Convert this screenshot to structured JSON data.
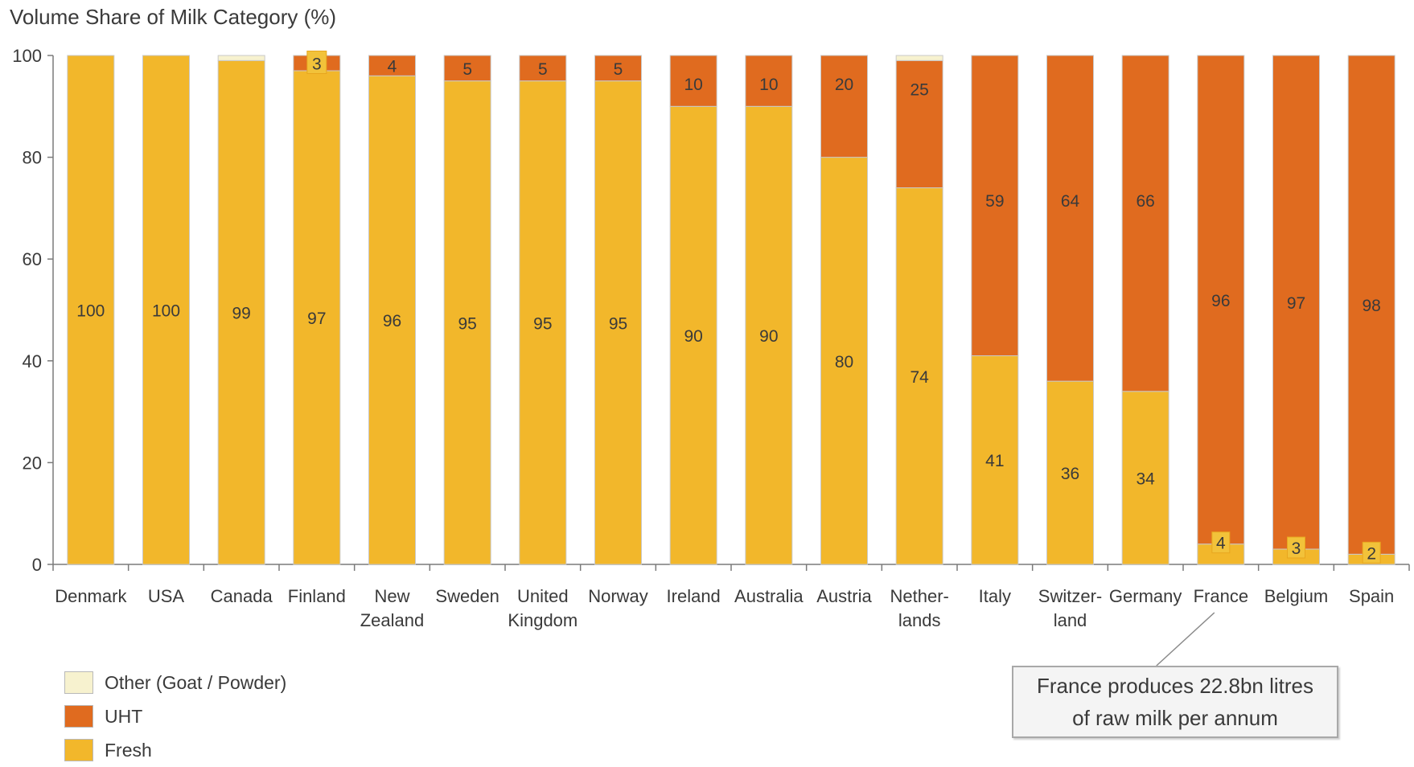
{
  "chart_data": {
    "type": "bar",
    "stacked": true,
    "title": "",
    "ylabel": "Volume Share of Milk Category (%)",
    "xlabel": "",
    "ylim": [
      0,
      100
    ],
    "yticks": [
      "0",
      "20",
      "40",
      "60",
      "80",
      "100"
    ],
    "grid": false,
    "legend_position": "bottom-left",
    "categories": [
      [
        "Denmark"
      ],
      [
        "USA"
      ],
      [
        "Canada"
      ],
      [
        "Finland"
      ],
      [
        "New",
        "Zealand"
      ],
      [
        "Sweden"
      ],
      [
        "United",
        "Kingdom"
      ],
      [
        "Norway"
      ],
      [
        "Ireland"
      ],
      [
        "Australia"
      ],
      [
        "Austria"
      ],
      [
        "Nether-",
        "lands"
      ],
      [
        "Italy"
      ],
      [
        "Switzer-",
        "land"
      ],
      [
        "Germany"
      ],
      [
        "France"
      ],
      [
        "Belgium"
      ],
      [
        "Spain"
      ]
    ],
    "series": [
      {
        "name": "Fresh",
        "color": "#f2b72b",
        "values": [
          100,
          100,
          99,
          97,
          96,
          95,
          95,
          95,
          90,
          90,
          80,
          74,
          41,
          36,
          34,
          4,
          3,
          2
        ],
        "labels": [
          "100",
          "100",
          "99",
          "97",
          "96",
          "95",
          "95",
          "95",
          "90",
          "90",
          "80",
          "74",
          "41",
          "36",
          "34",
          "4",
          "3",
          "2"
        ]
      },
      {
        "name": "UHT",
        "color": "#e06b1f",
        "values": [
          0,
          0,
          0,
          3,
          4,
          5,
          5,
          5,
          10,
          10,
          20,
          25,
          59,
          64,
          66,
          96,
          97,
          98
        ],
        "labels": [
          "",
          "",
          "",
          "3",
          "4",
          "5",
          "5",
          "5",
          "10",
          "10",
          "20",
          "25",
          "59",
          "64",
          "66",
          "96",
          "97",
          "98"
        ]
      },
      {
        "name": "Other (Goat / Powder)",
        "color": "#f7f2cf",
        "values": [
          0,
          0,
          1,
          0,
          0,
          0,
          0,
          0,
          0,
          0,
          0,
          1,
          0,
          0,
          0,
          0,
          0,
          0
        ],
        "labels": []
      }
    ],
    "legend": [
      "Other (Goat / Powder)",
      "UHT",
      "Fresh"
    ],
    "annotation": {
      "category": "France",
      "text": "France produces 22.8bn litres of raw milk per annum"
    }
  }
}
